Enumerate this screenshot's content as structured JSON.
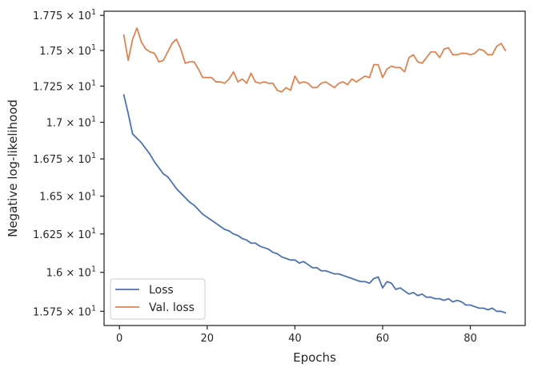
{
  "chart_data": {
    "type": "line",
    "title": "",
    "xlabel": "Epochs",
    "ylabel": "Negative log-likelihood",
    "xlim": [
      -3.5,
      92.5
    ],
    "ylim": [
      15.66,
      17.78
    ],
    "y_scale": "log",
    "x_ticks": [
      0,
      20,
      40,
      60,
      80
    ],
    "x_tick_labels": [
      "0",
      "20",
      "40",
      "60",
      "80"
    ],
    "y_ticks": [
      15.75,
      16.0,
      16.25,
      16.5,
      16.75,
      17.0,
      17.25,
      17.5,
      17.75
    ],
    "y_tick_labels": [
      {
        "mant": "1.575",
        "exp": "1"
      },
      {
        "mant": "1.6",
        "exp": "1"
      },
      {
        "mant": "1.625",
        "exp": "1"
      },
      {
        "mant": "1.65",
        "exp": "1"
      },
      {
        "mant": "1.675",
        "exp": "1"
      },
      {
        "mant": "1.7",
        "exp": "1"
      },
      {
        "mant": "1.725",
        "exp": "1"
      },
      {
        "mant": "1.75",
        "exp": "1"
      },
      {
        "mant": "1.775",
        "exp": "1"
      }
    ],
    "grid": false,
    "legend_position": "lower-left",
    "series": [
      {
        "name": "Loss",
        "color": "#4c72b0",
        "x": [
          1,
          2,
          3,
          4,
          5,
          6,
          7,
          8,
          9,
          10,
          11,
          12,
          13,
          14,
          15,
          16,
          17,
          18,
          19,
          20,
          21,
          22,
          23,
          24,
          25,
          26,
          27,
          28,
          29,
          30,
          31,
          32,
          33,
          34,
          35,
          36,
          37,
          38,
          39,
          40,
          41,
          42,
          43,
          44,
          45,
          46,
          47,
          48,
          49,
          50,
          51,
          52,
          53,
          54,
          55,
          56,
          57,
          58,
          59,
          60,
          61,
          62,
          63,
          64,
          65,
          66,
          67,
          68,
          69,
          70,
          71,
          72,
          73,
          74,
          75,
          76,
          77,
          78,
          79,
          80,
          81,
          82,
          83,
          84,
          85,
          86,
          87,
          88
        ],
        "values": [
          17.19,
          17.06,
          16.92,
          16.89,
          16.86,
          16.82,
          16.78,
          16.73,
          16.69,
          16.65,
          16.63,
          16.59,
          16.55,
          16.52,
          16.49,
          16.46,
          16.44,
          16.41,
          16.38,
          16.36,
          16.34,
          16.32,
          16.3,
          16.28,
          16.27,
          16.25,
          16.24,
          16.22,
          16.21,
          16.19,
          16.19,
          16.17,
          16.16,
          16.15,
          16.13,
          16.12,
          16.1,
          16.09,
          16.08,
          16.08,
          16.06,
          16.07,
          16.05,
          16.03,
          16.03,
          16.01,
          16.01,
          16.0,
          15.99,
          15.99,
          15.98,
          15.97,
          15.96,
          15.95,
          15.94,
          15.94,
          15.93,
          15.96,
          15.97,
          15.9,
          15.94,
          15.93,
          15.89,
          15.9,
          15.88,
          15.86,
          15.87,
          15.85,
          15.86,
          15.84,
          15.84,
          15.83,
          15.83,
          15.82,
          15.83,
          15.81,
          15.82,
          15.81,
          15.79,
          15.79,
          15.78,
          15.77,
          15.77,
          15.76,
          15.77,
          15.75,
          15.75,
          15.74
        ]
      },
      {
        "name": "Val. loss",
        "color": "#dd8452",
        "x": [
          1,
          2,
          3,
          4,
          5,
          6,
          7,
          8,
          9,
          10,
          11,
          12,
          13,
          14,
          15,
          16,
          17,
          18,
          19,
          20,
          21,
          22,
          23,
          24,
          25,
          26,
          27,
          28,
          29,
          30,
          31,
          32,
          33,
          34,
          35,
          36,
          37,
          38,
          39,
          40,
          41,
          42,
          43,
          44,
          45,
          46,
          47,
          48,
          49,
          50,
          51,
          52,
          53,
          54,
          55,
          56,
          57,
          58,
          59,
          60,
          61,
          62,
          63,
          64,
          65,
          66,
          67,
          68,
          69,
          70,
          71,
          72,
          73,
          74,
          75,
          76,
          77,
          78,
          79,
          80,
          81,
          82,
          83,
          84,
          85,
          86,
          87,
          88
        ],
        "values": [
          17.61,
          17.43,
          17.58,
          17.66,
          17.56,
          17.51,
          17.49,
          17.48,
          17.42,
          17.43,
          17.49,
          17.55,
          17.58,
          17.51,
          17.41,
          17.42,
          17.42,
          17.37,
          17.31,
          17.31,
          17.31,
          17.28,
          17.28,
          17.27,
          17.3,
          17.35,
          17.28,
          17.3,
          17.27,
          17.34,
          17.28,
          17.27,
          17.28,
          17.27,
          17.27,
          17.22,
          17.21,
          17.24,
          17.22,
          17.32,
          17.27,
          17.28,
          17.27,
          17.24,
          17.24,
          17.27,
          17.28,
          17.26,
          17.24,
          17.27,
          17.28,
          17.26,
          17.3,
          17.28,
          17.3,
          17.32,
          17.31,
          17.4,
          17.4,
          17.31,
          17.37,
          17.39,
          17.38,
          17.38,
          17.35,
          17.45,
          17.47,
          17.42,
          17.41,
          17.45,
          17.49,
          17.49,
          17.45,
          17.51,
          17.52,
          17.47,
          17.47,
          17.48,
          17.48,
          17.47,
          17.48,
          17.51,
          17.5,
          17.47,
          17.47,
          17.53,
          17.55,
          17.5
        ]
      }
    ]
  }
}
